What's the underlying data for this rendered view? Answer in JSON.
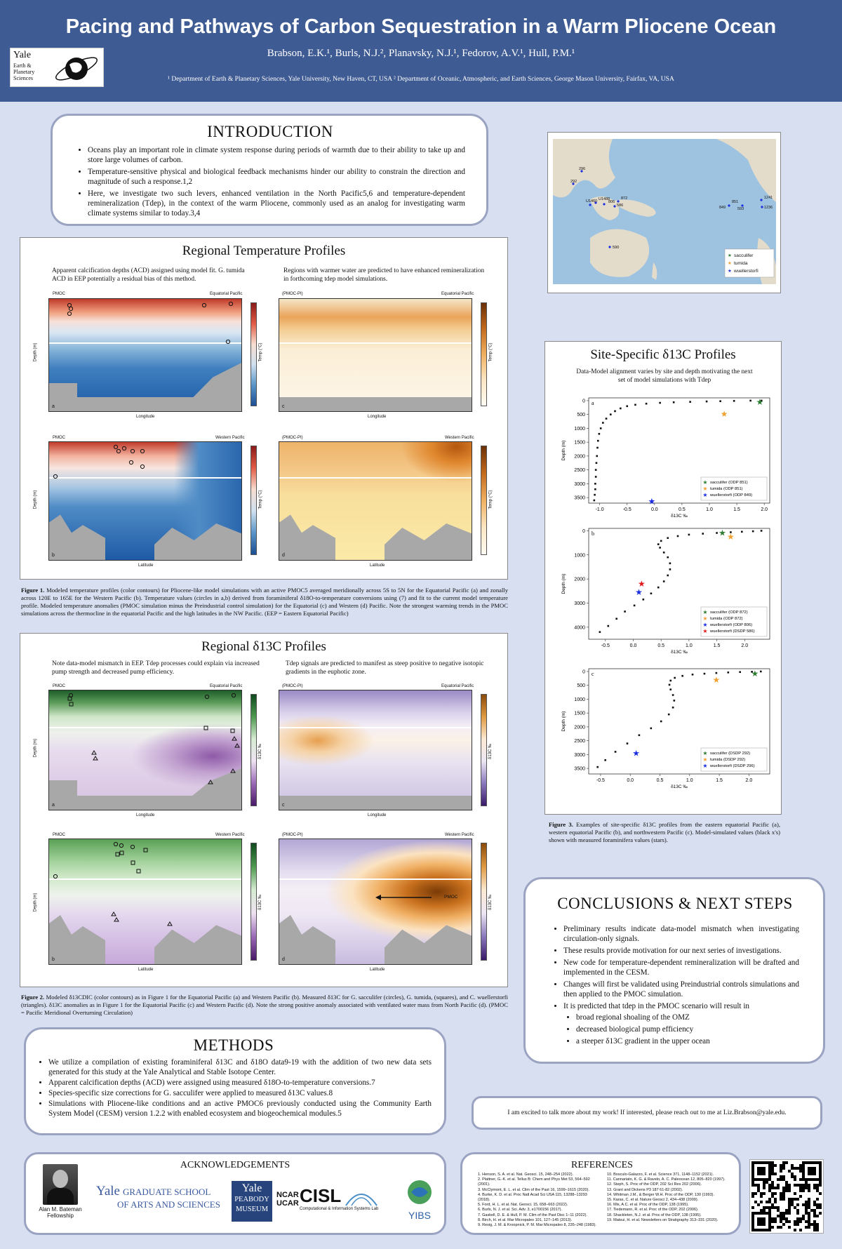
{
  "header": {
    "title": "Pacing and Pathways of Carbon Sequestration in a Warm Pliocene Ocean",
    "authors": "Brabson, E.K.¹, Burls, N.J.², Planavsky, N.J.¹, Fedorov, A.V.¹, Hull, P.M.¹",
    "affiliations": "¹ Department of Earth & Planetary Sciences, Yale University, New Haven, CT, USA ² Department of Oceanic, Atmospheric, and Earth Sciences, George Mason University, Fairfax, VA, USA",
    "logo_text": "Yale",
    "logo_sub": [
      "Earth &",
      "Planetary",
      "Sciences"
    ]
  },
  "introduction": {
    "heading": "INTRODUCTION",
    "bullets": [
      "Oceans play an important role in climate system response during periods of warmth due to their ability to take up and store large volumes of carbon.",
      "Temperature-sensitive physical and biological feedback mechanisms hinder our ability to constrain the direction and magnitude of such a response.1,2",
      "Here, we investigate two such levers, enhanced ventilation in the North Pacific5,6 and temperature-dependent remineralization (Tdep), in the context of the warm Pliocene, commonly used as an analog for investigating warm climate systems similar to today.3,4"
    ]
  },
  "map": {
    "legend": [
      "sacculifer",
      "tumida",
      "wuellerstorfi"
    ],
    "sites": [
      "296",
      "292",
      "U1460",
      "872",
      "806",
      "U1488",
      "586",
      "590",
      "849",
      "851",
      "1241",
      "1236",
      "593"
    ]
  },
  "temp_profiles": {
    "title": "Regional Temperature Profiles",
    "note_left": "Apparent calcification depths (ACD) assigned using model fit. G. tumida ACD in EEP potentially a residual bias of this method.",
    "note_right": "Regions with warmer water are predicted to have enhanced remineralization in forthcoming tdep model simulations.",
    "panels": [
      {
        "tag": "PMOC",
        "region": "Equatorial Pacific",
        "letter": "a",
        "xlabel": "Longitude",
        "cbar": "Temp (°C)"
      },
      {
        "tag": "(PMOC-PI)",
        "region": "Equatorial Pacific",
        "letter": "c",
        "xlabel": "Longitude",
        "cbar": "Temp (°C)"
      },
      {
        "tag": "PMOC",
        "region": "Western Pacific",
        "letter": "b",
        "xlabel": "Latitude",
        "cbar": "Temp (°C)"
      },
      {
        "tag": "(PMOC-PI)",
        "region": "Western Pacific",
        "letter": "d",
        "xlabel": "Latitude",
        "cbar": "Temp (°C)"
      }
    ],
    "ylabel": "Depth (m)",
    "caption_label": "Figure 1.",
    "caption": "Modeled temperature profiles (color contours) for Pliocene-like model simulations with an active PMOC5 averaged meridionally across 5S to 5N for the Equatorial Pacific (a) and zonally across 120E to 165E for the Western Pacific (b). Temperature values (circles in a,b) derived from foraminiferal δ18O-to-temperature conversions using (7) and fit to the current model temperature profile. Modeled temperature anomalies (PMOC simulation minus the Preindustrial control simulation) for the Equatorial (c) and Western (d) Pacific. Note the strongest warming trends in the PMOC simulations across the thermocline in the equatorial Pacific and the high latitudes in the NW Pacific. (EEP = Eastern Equatorial Pacific)"
  },
  "d13c_profiles": {
    "title": "Regional δ13C Profiles",
    "note_left": "Note data-model mismatch in EEP. Tdep processes could explain via increased pump strength and decreased pump efficiency.",
    "note_right": "Tdep signals are predicted to manifest as steep positive to negative isotopic gradients in the euphotic zone.",
    "panels": [
      {
        "tag": "PMOC",
        "region": "Equatorial Pacific",
        "letter": "a",
        "xlabel": "Longitude",
        "cbar": "δ13C ‰"
      },
      {
        "tag": "(PMOC-PI)",
        "region": "Equatorial Pacific",
        "letter": "c",
        "xlabel": "Longitude",
        "cbar": "δ13C ‰"
      },
      {
        "tag": "PMOC",
        "region": "Western Pacific",
        "letter": "b",
        "xlabel": "Latitude",
        "cbar": "δ13C ‰"
      },
      {
        "tag": "(PMOC-PI)",
        "region": "Western Pacific",
        "letter": "d",
        "xlabel": "Latitude",
        "cbar": "δ13C ‰",
        "annotation": "PMOC"
      }
    ],
    "caption_label": "Figure 2.",
    "caption": "Modeled δ13CDIC (color contours) as in Figure 1 for the Equatorial Pacific (a) and Western Pacific (b). Measured δ13C for G. sacculifer (circles), G. tumida, (squares), and C. wuellerstorfi (triangles). δ13C anomalies as in Figure 1 for the Equatorial Pacific (c) and Western Pacific (d). Note the strong positive anomaly associated with ventilated water mass from North Pacific (d). (PMOC = Pacific Meridional Overturning Circulation)"
  },
  "site_profiles": {
    "title": "Site-Specific δ13C Profiles",
    "subtitle": "Data-Model alignment varies by site and depth motivating the next set of model simulations with Tdep",
    "caption_label": "Figure 3.",
    "caption": "Examples of site-specific δ13C profiles from the eastern equatorial Pacific (a), western equatorial Pacific (b), and northwestern Pacific (c). Model-simulated values (black x's) shown with measured foraminifera values (stars)."
  },
  "chart_data": [
    {
      "type": "scatter",
      "title": "",
      "panel": "a",
      "xlabel": "δ13C ‰",
      "ylabel": "Depth (m)",
      "xlim": [
        -1.2,
        2.1
      ],
      "ylim": [
        3700,
        -100
      ],
      "xticks": [
        "-1.0",
        "-0.5",
        "0.0",
        "0.5",
        "1.0",
        "1.5",
        "2.0"
      ],
      "xtick_values": [
        -1.0,
        -0.5,
        0.0,
        0.5,
        1.0,
        1.5,
        2.0
      ],
      "yticks": [
        "0",
        "500",
        "1000",
        "1500",
        "2000",
        "2500",
        "3000",
        "3500"
      ],
      "ytick_values": [
        0,
        500,
        1000,
        1500,
        2000,
        2500,
        3000,
        3500
      ],
      "model": {
        "x": [
          1.95,
          1.75,
          1.45,
          1.2,
          0.95,
          0.65,
          0.35,
          0.1,
          -0.15,
          -0.35,
          -0.5,
          -0.62,
          -0.72,
          -0.8,
          -0.88,
          -0.94,
          -0.98,
          -1.01,
          -1.03,
          -1.04,
          -1.05,
          -1.06,
          -1.07,
          -1.07,
          -1.08,
          -1.08,
          -1.09,
          -1.1
        ],
        "y": [
          0,
          0,
          10,
          20,
          30,
          45,
          60,
          80,
          110,
          150,
          200,
          280,
          380,
          500,
          650,
          800,
          1000,
          1200,
          1450,
          1700,
          2000,
          2250,
          2500,
          2750,
          3000,
          3200,
          3400,
          3600
        ]
      },
      "stars": [
        {
          "name": "sacculifer (ODP 851)",
          "x": 1.92,
          "y": 50,
          "color": "#2e7d32"
        },
        {
          "name": "tumida (ODP 851)",
          "x": 1.27,
          "y": 480,
          "color": "#f0a030"
        },
        {
          "name": "wuellerstorfi (ODP 849)",
          "x": -0.05,
          "y": 3640,
          "color": "#1a2ee0"
        }
      ]
    },
    {
      "type": "scatter",
      "title": "",
      "panel": "b",
      "xlabel": "δ13C ‰",
      "ylabel": "Depth (m)",
      "xlim": [
        -0.8,
        2.45
      ],
      "ylim": [
        4500,
        -100
      ],
      "xticks": [
        "-0.5",
        "0.0",
        "0.5",
        "1.0",
        "1.5",
        "2.0"
      ],
      "xtick_values": [
        -0.5,
        0.0,
        0.5,
        1.0,
        1.5,
        2.0
      ],
      "yticks": [
        "0",
        "1000",
        "2000",
        "3000",
        "4000"
      ],
      "ytick_values": [
        0,
        1000,
        2000,
        3000,
        4000
      ],
      "model": {
        "x": [
          2.3,
          2.15,
          1.95,
          1.75,
          1.5,
          1.25,
          1.0,
          0.8,
          0.62,
          0.5,
          0.45,
          0.48,
          0.55,
          0.62,
          0.66,
          0.66,
          0.62,
          0.55,
          0.45,
          0.32,
          0.18,
          0.02,
          -0.15,
          -0.3,
          -0.45,
          -0.6
        ],
        "y": [
          0,
          20,
          40,
          60,
          90,
          120,
          160,
          220,
          300,
          420,
          560,
          700,
          900,
          1100,
          1350,
          1600,
          1850,
          2100,
          2350,
          2600,
          2850,
          3100,
          3350,
          3650,
          3950,
          4200
        ]
      },
      "stars": [
        {
          "name": "sacculifer (ODP 872)",
          "x": 1.6,
          "y": 90,
          "color": "#2e7d32"
        },
        {
          "name": "tumida (ODP 872)",
          "x": 1.75,
          "y": 250,
          "color": "#f0a030"
        },
        {
          "name": "wuellerstorfi (ODP 806)",
          "x": 0.1,
          "y": 2550,
          "color": "#1a2ee0"
        },
        {
          "name": "wuellerstorfi (DSDP 586)",
          "x": 0.15,
          "y": 2200,
          "color": "#e01a1a"
        }
      ]
    },
    {
      "type": "scatter",
      "title": "",
      "panel": "c",
      "xlabel": "δ13C ‰",
      "ylabel": "Depth (m)",
      "xlim": [
        -0.7,
        2.35
      ],
      "ylim": [
        3700,
        -100
      ],
      "xticks": [
        "-0.5",
        "0.0",
        "0.5",
        "1.0",
        "1.5",
        "2.0"
      ],
      "xtick_values": [
        -0.5,
        0.0,
        0.5,
        1.0,
        1.5,
        2.0
      ],
      "yticks": [
        "0",
        "500",
        "1000",
        "1500",
        "2000",
        "2500",
        "3000",
        "3500"
      ],
      "ytick_values": [
        0,
        500,
        1000,
        1500,
        2000,
        2500,
        3000,
        3500
      ],
      "model": {
        "x": [
          2.2,
          2.05,
          1.85,
          1.65,
          1.45,
          1.25,
          1.05,
          0.88,
          0.75,
          0.68,
          0.66,
          0.68,
          0.72,
          0.74,
          0.72,
          0.65,
          0.52,
          0.35,
          0.15,
          -0.05,
          -0.25,
          -0.42,
          -0.55
        ],
        "y": [
          0,
          10,
          20,
          35,
          55,
          80,
          110,
          160,
          230,
          330,
          480,
          650,
          850,
          1050,
          1300,
          1550,
          1800,
          2050,
          2300,
          2600,
          2900,
          3200,
          3450
        ]
      },
      "stars": [
        {
          "name": "sacculifer (DSDP 292)",
          "x": 2.1,
          "y": 80,
          "color": "#2e7d32"
        },
        {
          "name": "tumida (DSDP 292)",
          "x": 1.45,
          "y": 300,
          "color": "#f0a030"
        },
        {
          "name": "wuellerstorfi (DSDP 296)",
          "x": 0.1,
          "y": 2950,
          "color": "#1a2ee0"
        }
      ]
    }
  ],
  "conclusions": {
    "heading": "CONCLUSIONS & NEXT STEPS",
    "bullets": [
      "Preliminary results indicate data-model mismatch when investigating circulation-only signals.",
      "These results provide motivation for our next series of investigations.",
      "New code for temperature-dependent remineralization will be drafted and implemented in the CESM.",
      "Changes will first be validated using Preindustrial controls simulations and then applied to the PMOC simulation.",
      "It is predicted that tdep in the PMOC scenario will result in"
    ],
    "sub_bullets": [
      "broad regional shoaling of the OMZ",
      "decreased biological pump efficiency",
      "a steeper δ13C gradient in the upper ocean"
    ]
  },
  "methods": {
    "heading": "METHODS",
    "bullets": [
      "We utilize a compilation of existing foraminiferal δ13C and δ18O data9-19 with the addition of two new data sets generated for this study at the Yale Analytical and Stable Isotope Center.",
      "Apparent calcification depths (ACD) were assigned using measured δ18O-to-temperature conversions.7",
      "Species-specific size corrections for G. sacculifer were applied to measured δ13C values.8",
      "Simulations with Pliocene-like conditions and an active PMOC6 previously conducted using the Community Earth System Model (CESM) version 1.2.2 with enabled ecosystem and biogeochemical modules.5"
    ]
  },
  "contact": "I am excited to talk more about my work! If interested, please reach out to me at Liz.Brabson@yale.edu.",
  "acknowledgements": {
    "heading": "ACKNOWLEDGEMENTS",
    "photo_caption": "Alan M. Bateman Fellowship",
    "yale_grad_1": "Yale",
    "yale_grad_2": "GRADUATE SCHOOL",
    "yale_grad_3": "OF ARTS AND SCIENCES",
    "peabody": [
      "Yale",
      "PEABODY",
      "MUSEUM"
    ],
    "ncar": [
      "NCAR",
      "UCAR"
    ],
    "cisl": "CISL",
    "cisl_sub": "Computational & Information Systems Lab",
    "yibs": "YIBS"
  },
  "references": {
    "heading": "REFERENCES",
    "left": [
      "1. Henson, S. A. et al. Nat. Geosci. 15, 248–254 (2022).",
      "2. Plattner, G.-K. et al. Tellus B: Chem and Phys Met 53, 564–592 (2001).",
      "3. McClymont, E. L. et al. Clim of the Past 16, 1599–1615 (2020).",
      "4. Burke, K. D. et al. Proc Natl Acad Sci USA 115, 13288–13293 (2018).",
      "5. Ford, H. L. et al. Nat. Geosci. 15, 658–663 (2022).",
      "6. Burls, N. J. et al. Sci. Adv. 3, e1700156 (2017).",
      "7. Gaskell, D. E. & Hull, P. M. Clim of the Past Disc 1–11 (2022).",
      "8. Birch, H. et al. Mar Micropaleo 101, 127–145 (2013).",
      "9. Resig, J. M. & Kroopnick, P. M. Mar Micropaleo 8, 235–248 (1983)."
    ],
    "right": [
      "10. Bosculo-Galazzo, F. et al. Science 371, 1148–1152 (2021).",
      "11. Cannariato, K. G. & Ravelo, A. C. Paleocean 12, 805–820 (1997).",
      "12. Steph, S. Proc of the ODP, 202 Sci Res 202 (2006).",
      "13. Grant and Dickens P3 187 61-82 (2002).",
      "14. Whitman J.M., & Berger W.H. Proc of the ODP, 130 (1993).",
      "15. Karas, C. et al. Nature Geosci 2, 434–438 (2009).",
      "16. Mix, A.C. et al. Proc of the ODP, 138 (1995).",
      "17. Tiedemann, R. et al. Proc of the ODP, 202 (2006).",
      "18. Shackleton, N.J. et al. Proc of the ODP, 138 (1995).",
      "19. Matsui, H. et al. Newsletters on Stratigraphy 313–331 (2020)."
    ]
  },
  "colors": {
    "header": "#3f5b93",
    "background": "#d7dff0",
    "box_border": "#9aa4c2"
  }
}
